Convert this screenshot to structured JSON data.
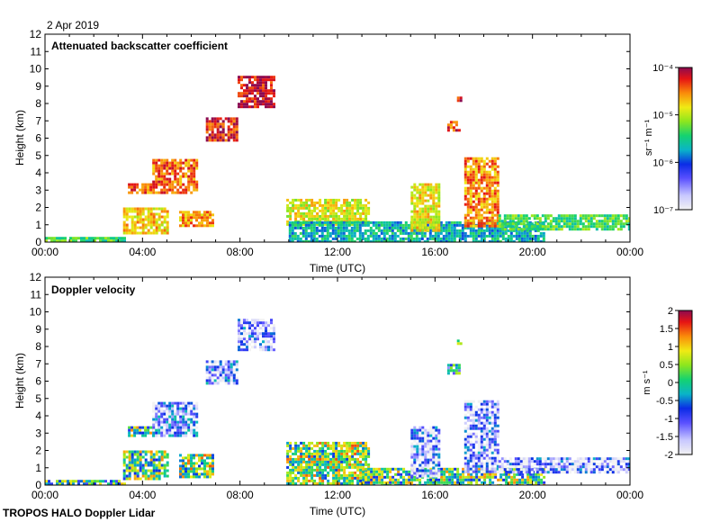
{
  "date_label": "2 Apr 2019",
  "footer_label": "TROPOS HALO Doppler Lidar",
  "chart_data": [
    {
      "type": "heatmap",
      "title": "Attenuated backscatter coefficient",
      "xlabel": "Time (UTC)",
      "ylabel": "Height (km)",
      "xlim": [
        0,
        24
      ],
      "ylim": [
        0,
        12
      ],
      "x_ticks": [
        "00:00",
        "04:00",
        "08:00",
        "12:00",
        "16:00",
        "20:00",
        "00:00"
      ],
      "y_ticks": [
        "0",
        "1",
        "2",
        "3",
        "4",
        "5",
        "6",
        "7",
        "8",
        "9",
        "10",
        "11",
        "12"
      ],
      "colorbar": {
        "label": "sr⁻¹ m⁻¹",
        "scale": "log",
        "range": [
          1e-07,
          0.0001
        ],
        "ticks": [
          "10⁻⁷",
          "10⁻⁶",
          "10⁻⁵",
          "10⁻⁴"
        ]
      },
      "colorbar_tick_values": [
        0,
        0.333,
        0.667,
        1
      ],
      "features": [
        {
          "t0": 0.0,
          "t1": 3.3,
          "h0": 0.0,
          "h1": 0.3,
          "v": 0.55
        },
        {
          "t0": 3.2,
          "t1": 5.0,
          "h0": 0.5,
          "h1": 2.0,
          "v": 0.75
        },
        {
          "t0": 3.4,
          "t1": 4.4,
          "h0": 2.8,
          "h1": 3.4,
          "v": 0.85
        },
        {
          "t0": 4.4,
          "t1": 6.2,
          "h0": 2.8,
          "h1": 4.8,
          "v": 0.85
        },
        {
          "t0": 5.5,
          "t1": 6.9,
          "h0": 1.0,
          "h1": 1.8,
          "v": 0.8
        },
        {
          "t0": 6.6,
          "t1": 7.9,
          "h0": 5.8,
          "h1": 7.2,
          "v": 0.92
        },
        {
          "t0": 7.9,
          "t1": 9.4,
          "h0": 7.8,
          "h1": 9.6,
          "v": 0.95
        },
        {
          "t0": 9.9,
          "t1": 13.3,
          "h0": 1.0,
          "h1": 2.5,
          "v": 0.7
        },
        {
          "t0": 10.0,
          "t1": 20.5,
          "h0": 0.0,
          "h1": 1.2,
          "v": 0.45
        },
        {
          "t0": 15.0,
          "t1": 16.2,
          "h0": 0.6,
          "h1": 3.4,
          "v": 0.72
        },
        {
          "t0": 16.5,
          "t1": 17.0,
          "h0": 6.4,
          "h1": 7.0,
          "v": 0.88
        },
        {
          "t0": 16.9,
          "t1": 17.1,
          "h0": 8.2,
          "h1": 8.4,
          "v": 0.95
        },
        {
          "t0": 17.2,
          "t1": 18.6,
          "h0": 1.0,
          "h1": 4.9,
          "v": 0.82
        },
        {
          "t0": 18.6,
          "t1": 24.0,
          "h0": 0.8,
          "h1": 1.6,
          "v": 0.55
        }
      ]
    },
    {
      "type": "heatmap",
      "title": "Doppler velocity",
      "xlabel": "Time (UTC)",
      "ylabel": "Height (km)",
      "xlim": [
        0,
        24
      ],
      "ylim": [
        0,
        12
      ],
      "x_ticks": [
        "00:00",
        "04:00",
        "08:00",
        "12:00",
        "16:00",
        "20:00",
        "00:00"
      ],
      "y_ticks": [
        "0",
        "1",
        "2",
        "3",
        "4",
        "5",
        "6",
        "7",
        "8",
        "9",
        "10",
        "11",
        "12"
      ],
      "colorbar": {
        "label": "m s⁻¹",
        "range": [
          -2,
          2
        ],
        "ticks": [
          "-2",
          "-1.5",
          "-1",
          "-0.5",
          "0",
          "0.5",
          "1",
          "1.5",
          "2"
        ]
      },
      "colorbar_tick_values": [
        0,
        0.125,
        0.25,
        0.375,
        0.5,
        0.625,
        0.75,
        0.875,
        1
      ],
      "features": [
        {
          "t0": 0.0,
          "t1": 3.3,
          "h0": 0.0,
          "h1": 0.3,
          "v": 0.5
        },
        {
          "t0": 3.2,
          "t1": 5.0,
          "h0": 0.3,
          "h1": 2.0,
          "v": 0.55
        },
        {
          "t0": 3.4,
          "t1": 4.4,
          "h0": 2.8,
          "h1": 3.4,
          "v": 0.55
        },
        {
          "t0": 4.4,
          "t1": 6.2,
          "h0": 2.8,
          "h1": 4.8,
          "v": 0.2
        },
        {
          "t0": 5.5,
          "t1": 6.9,
          "h0": 0.5,
          "h1": 1.8,
          "v": 0.6
        },
        {
          "t0": 6.6,
          "t1": 7.9,
          "h0": 5.8,
          "h1": 7.2,
          "v": 0.2
        },
        {
          "t0": 7.9,
          "t1": 9.4,
          "h0": 7.8,
          "h1": 9.6,
          "v": 0.15
        },
        {
          "t0": 9.9,
          "t1": 13.3,
          "h0": 0.0,
          "h1": 2.5,
          "v": 0.6
        },
        {
          "t0": 13.0,
          "t1": 20.5,
          "h0": 0.0,
          "h1": 1.0,
          "v": 0.55
        },
        {
          "t0": 15.0,
          "t1": 16.2,
          "h0": 0.5,
          "h1": 3.4,
          "v": 0.15
        },
        {
          "t0": 16.5,
          "t1": 17.0,
          "h0": 6.4,
          "h1": 7.0,
          "v": 0.4
        },
        {
          "t0": 16.9,
          "t1": 17.1,
          "h0": 8.2,
          "h1": 8.4,
          "v": 0.5
        },
        {
          "t0": 17.2,
          "t1": 18.6,
          "h0": 0.8,
          "h1": 4.9,
          "v": 0.15
        },
        {
          "t0": 18.6,
          "t1": 24.0,
          "h0": 0.8,
          "h1": 1.6,
          "v": 0.15
        }
      ]
    }
  ]
}
